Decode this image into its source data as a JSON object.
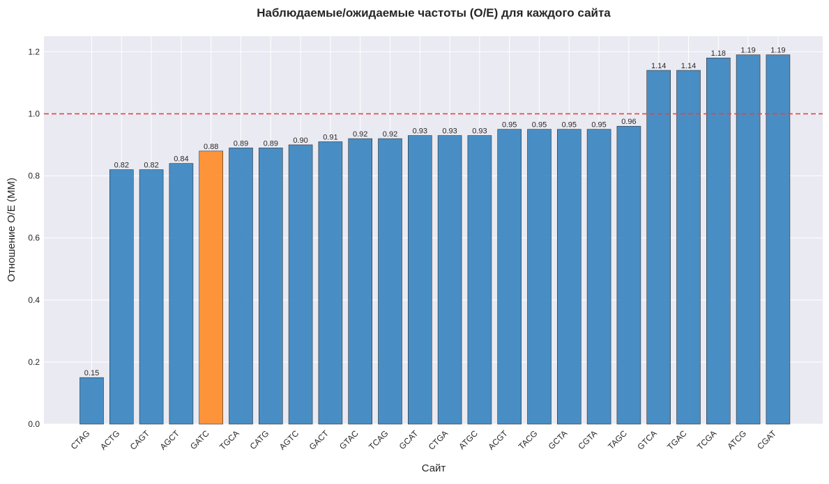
{
  "chart_data": {
    "type": "bar",
    "title": "Наблюдаемые/ожидаемые частоты (O/E) для каждого сайта",
    "xlabel": "Сайт",
    "ylabel": "Отношение O/E (MM)",
    "ylim": [
      0,
      1.25
    ],
    "yticks": [
      0.0,
      0.2,
      0.4,
      0.6,
      0.8,
      1.0,
      1.2
    ],
    "ytick_labels": [
      "0.0",
      "0.2",
      "0.4",
      "0.6",
      "0.8",
      "1.0",
      "1.2"
    ],
    "grid": true,
    "reference_line": {
      "value": 1.0,
      "style": "dashed",
      "color": "#e8423b"
    },
    "bar_color": "#3a86c0",
    "highlight_color": "#ff8c2a",
    "highlight_category": "GATC",
    "categories": [
      "CTAG",
      "ACTG",
      "CAGT",
      "AGCT",
      "GATC",
      "TGCA",
      "CATG",
      "AGTC",
      "GACT",
      "GTAC",
      "TCAG",
      "GCAT",
      "CTGA",
      "ATGC",
      "ACGT",
      "TACG",
      "GCTA",
      "CGTA",
      "TAGC",
      "GTCA",
      "TGAC",
      "TCGA",
      "ATCG",
      "CGAT"
    ],
    "values": [
      0.15,
      0.82,
      0.82,
      0.84,
      0.88,
      0.89,
      0.89,
      0.9,
      0.91,
      0.92,
      0.92,
      0.93,
      0.93,
      0.93,
      0.95,
      0.95,
      0.95,
      0.95,
      0.96,
      1.14,
      1.14,
      1.18,
      1.19,
      1.19
    ],
    "value_labels": [
      "0.15",
      "0.82",
      "0.82",
      "0.84",
      "0.88",
      "0.89",
      "0.89",
      "0.90",
      "0.91",
      "0.92",
      "0.92",
      "0.93",
      "0.93",
      "0.93",
      "0.95",
      "0.95",
      "0.95",
      "0.95",
      "0.96",
      "1.14",
      "1.14",
      "1.18",
      "1.19",
      "1.19"
    ]
  }
}
